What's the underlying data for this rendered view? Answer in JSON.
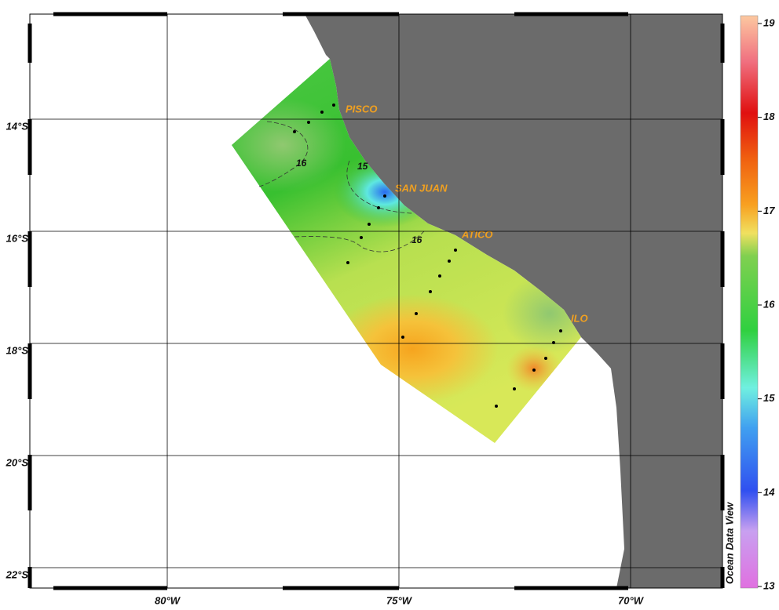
{
  "map": {
    "lon_ticks": [
      {
        "value": -80,
        "label": "80°W"
      },
      {
        "value": -75,
        "label": "75°W"
      },
      {
        "value": -70,
        "label": "70°W"
      }
    ],
    "lat_ticks": [
      {
        "value": -14,
        "label": "14°S"
      },
      {
        "value": -16,
        "label": "16°S"
      },
      {
        "value": -18,
        "label": "18°S"
      },
      {
        "value": -20,
        "label": "20°S"
      },
      {
        "value": -22,
        "label": "22°S"
      }
    ],
    "places": [
      "PISCO",
      "SAN JUAN",
      "ATICO",
      "ILO"
    ],
    "contour_labels": [
      16,
      15,
      16
    ]
  },
  "colorbar": {
    "ticks": [
      13,
      14,
      15,
      16,
      17,
      18,
      19
    ],
    "label": "Ocean Data View"
  }
}
